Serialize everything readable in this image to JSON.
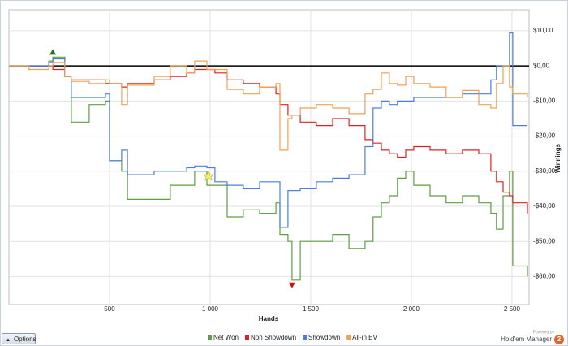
{
  "chart_data": {
    "type": "line",
    "ylabel": "Winnings",
    "xlabel": "Hands",
    "x": [
      0,
      100,
      198,
      218,
      278,
      310,
      399,
      480,
      500,
      560,
      589,
      722,
      802,
      883,
      923,
      984,
      1024,
      1085,
      1165,
      1246,
      1327,
      1347,
      1387,
      1407,
      1448,
      1528,
      1609,
      1690,
      1770,
      1810,
      1851,
      1891,
      1931,
      1972,
      2012,
      2093,
      2173,
      2254,
      2335,
      2395,
      2423,
      2456,
      2488,
      2504,
      2577
    ],
    "series": [
      {
        "name": "Net Won",
        "color": "#5f9e41",
        "values": [
          0,
          0,
          1.4,
          2.5,
          -3,
          -16,
          -11,
          -10,
          -27,
          -30,
          -38,
          -38,
          -34,
          -34,
          -30,
          -34,
          -34,
          -43,
          -41,
          -42,
          -39,
          -48,
          -50,
          -61,
          -50,
          -50,
          -48,
          -52,
          -50,
          -43,
          -39,
          -37,
          -32,
          -30,
          -34,
          -37,
          -39,
          -37,
          -39,
          -42,
          -46.5,
          -37,
          -30,
          -57,
          -60
        ]
      },
      {
        "name": "Non Showdown",
        "color": "#e02020",
        "values": [
          0,
          0,
          0,
          -1,
          -3,
          -4,
          -4,
          -5,
          -5,
          -6,
          -5,
          -4,
          -3,
          -2,
          -1,
          -1,
          -2,
          -4,
          -5,
          -6,
          -8,
          -11,
          -14,
          -14,
          -16,
          -17,
          -15,
          -17,
          -21,
          -22,
          -24,
          -25,
          -26,
          -24,
          -23,
          -24,
          -25,
          -24,
          -25,
          -30,
          -33,
          -36,
          -37,
          -39,
          -42
        ]
      },
      {
        "name": "Showdown",
        "color": "#4a7ee0",
        "values": [
          0,
          0,
          1,
          2,
          -3,
          -9,
          -9,
          -8,
          -27,
          -24,
          -31,
          -30,
          -30,
          -29,
          -28.5,
          -29,
          -33,
          -34,
          -35,
          -33,
          -33,
          -46,
          -35.5,
          -35.5,
          -35,
          -33,
          -32,
          -31,
          -23,
          -12,
          -10,
          -11,
          -10,
          -10,
          -9,
          -9,
          -9,
          -8,
          -8,
          -4,
          0,
          0,
          9.4,
          -17,
          -17
        ]
      },
      {
        "name": "All-in EV",
        "color": "#f0a050",
        "values": [
          0,
          -1,
          0,
          1,
          -3,
          -4.4,
          -5,
          -4,
          -5,
          -11,
          -5.5,
          -3,
          0,
          -2,
          1.4,
          -1,
          -1,
          -6.7,
          -8,
          -6,
          -5,
          -24,
          -15,
          -14,
          -12,
          -11,
          -12,
          -13.6,
          -8,
          -6.7,
          -2,
          -5,
          -5.5,
          -3,
          -5,
          -6,
          -9,
          -7,
          -11,
          -12,
          -5,
          0,
          -6,
          -8,
          -9
        ]
      }
    ],
    "xlim": [
      0,
      2585
    ],
    "ylim": [
      -68,
      16
    ],
    "xticks": [
      500,
      {
        "value": 1000,
        "label": "1 000"
      },
      {
        "value": 1500,
        "label": "1 500"
      },
      {
        "value": 2000,
        "label": "2 000"
      },
      {
        "value": 2500,
        "label": "2 500"
      }
    ],
    "yticks": [
      {
        "value": 10,
        "label": "$10,00"
      },
      {
        "value": 0,
        "label": "$0,00"
      },
      {
        "value": -10,
        "label": "-$10,00"
      },
      {
        "value": -20,
        "label": "-$20,00"
      },
      {
        "value": -30,
        "label": "-$30,00"
      },
      {
        "value": -40,
        "label": "-$40,00"
      },
      {
        "value": -50,
        "label": "-$50,00"
      },
      {
        "value": -60,
        "label": "-$60,00"
      }
    ],
    "grid": true,
    "legend": "bottom"
  },
  "ui": {
    "options_button": "Options",
    "powered_by": "Powered by",
    "brand": "Hold'em Manager",
    "brand_version": "2"
  }
}
